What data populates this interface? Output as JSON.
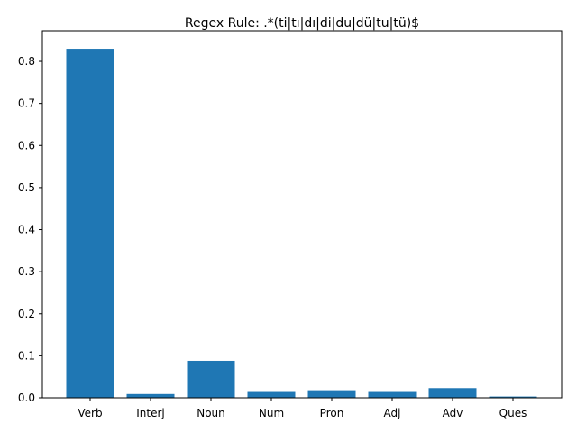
{
  "chart_data": {
    "type": "bar",
    "title": "Regex Rule: .*(ti|tı|dı|di|du|dü|tu|tü)$",
    "xlabel": "",
    "ylabel": "",
    "categories": [
      "Verb",
      "Interj",
      "Noun",
      "Num",
      "Pron",
      "Adj",
      "Adv",
      "Ques"
    ],
    "values": [
      0.83,
      0.009,
      0.088,
      0.016,
      0.018,
      0.016,
      0.023,
      0.003
    ],
    "ylim": [
      0,
      0.873
    ],
    "yticks": [
      "0.0",
      "0.1",
      "0.2",
      "0.3",
      "0.4",
      "0.5",
      "0.6",
      "0.7",
      "0.8"
    ],
    "bar_color": "#1f77b4",
    "grid": false,
    "legend": "none"
  }
}
